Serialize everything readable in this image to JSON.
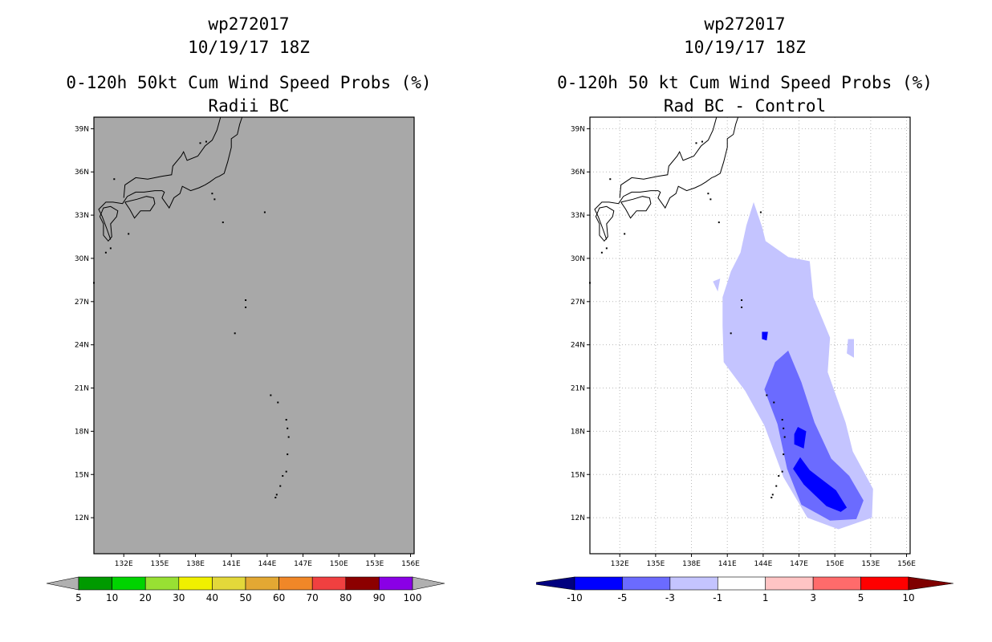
{
  "colors": {
    "land_gray": "#a8a8a8",
    "grid_dot": "#b8b8b8",
    "neg_deep": "#00007f",
    "neg_10_5": "#0000ff",
    "neg_5_3": "#6b6bff",
    "neg_3_1": "#c4c4ff",
    "zero": "#ffffff",
    "pos_1_3": "#ffc4c4",
    "pos_3_5": "#ff6b6b",
    "pos_5_10": "#ff0000",
    "pos_deep": "#7f0000"
  },
  "chart_data": [
    {
      "type": "heatmap",
      "storm": "wp272017",
      "datetime": "10/19/17 18Z",
      "title": "0-120h 50kt Cum Wind Speed Probs (%)",
      "subtitle": "Radii BC",
      "xlabel": "",
      "ylabel": "",
      "xlim": [
        129.5,
        156.3
      ],
      "ylim": [
        9.5,
        39.8
      ],
      "xticks": [
        132,
        135,
        138,
        141,
        144,
        147,
        150,
        153,
        156
      ],
      "xtick_labels": [
        "132E",
        "135E",
        "138E",
        "141E",
        "144E",
        "147E",
        "150E",
        "153E",
        "156E"
      ],
      "yticks": [
        12,
        15,
        18,
        21,
        24,
        27,
        30,
        33,
        36,
        39
      ],
      "ytick_labels": [
        "12N",
        "15N",
        "18N",
        "21N",
        "24N",
        "27N",
        "30N",
        "33N",
        "36N",
        "39N"
      ],
      "grid": false,
      "colorbar": {
        "labels": [
          "5",
          "10",
          "20",
          "30",
          "40",
          "50",
          "60",
          "70",
          "80",
          "90",
          "100"
        ],
        "colors": [
          "#009a00",
          "#00d400",
          "#98e033",
          "#f0f000",
          "#e3d83a",
          "#e3a833",
          "#f08728",
          "#f04040",
          "#8c0000",
          "#8a00e6"
        ],
        "end_color": "#b0b0b0"
      },
      "filled_regions": []
    },
    {
      "type": "heatmap",
      "storm": "wp272017",
      "datetime": "10/19/17 18Z",
      "title": "0-120h 50 kt Cum Wind Speed Probs (%)",
      "subtitle": "Rad BC - Control",
      "xlabel": "",
      "ylabel": "",
      "xlim": [
        129.5,
        156.3
      ],
      "ylim": [
        9.5,
        39.8
      ],
      "xticks": [
        132,
        135,
        138,
        141,
        144,
        147,
        150,
        153,
        156
      ],
      "xtick_labels": [
        "132E",
        "135E",
        "138E",
        "141E",
        "144E",
        "147E",
        "150E",
        "153E",
        "156E"
      ],
      "yticks": [
        12,
        15,
        18,
        21,
        24,
        27,
        30,
        33,
        36,
        39
      ],
      "ytick_labels": [
        "12N",
        "15N",
        "18N",
        "21N",
        "24N",
        "27N",
        "30N",
        "33N",
        "36N",
        "39N"
      ],
      "grid": true,
      "colorbar": {
        "labels": [
          "-10",
          "-5",
          "-3",
          "-1",
          "1",
          "3",
          "5",
          "10"
        ],
        "colors": [
          "#0000ff",
          "#6b6bff",
          "#c4c4ff",
          "#ffffff",
          "#ffc4c4",
          "#ff6b6b",
          "#ff0000"
        ],
        "low_end_color": "#00007f",
        "high_end_color": "#7f0000"
      },
      "filled_regions": [
        {
          "level": "-3 to -1",
          "color": "#c4c4ff",
          "polygon": [
            [
              143.2,
              33.9
            ],
            [
              143.9,
              32.2
            ],
            [
              144.2,
              31.2
            ],
            [
              146.1,
              30.1
            ],
            [
              147.9,
              29.8
            ],
            [
              148.2,
              27.3
            ],
            [
              149.6,
              24.5
            ],
            [
              149.4,
              22.1
            ],
            [
              150.9,
              18.6
            ],
            [
              151.5,
              16.6
            ],
            [
              153.2,
              14.0
            ],
            [
              153.1,
              12.0
            ],
            [
              150.3,
              11.2
            ],
            [
              147.7,
              12.0
            ],
            [
              145.7,
              14.8
            ],
            [
              144.1,
              18.4
            ],
            [
              142.5,
              20.8
            ],
            [
              140.7,
              22.8
            ],
            [
              140.6,
              25.3
            ],
            [
              140.6,
              27.3
            ],
            [
              141.3,
              29.1
            ],
            [
              142.1,
              30.4
            ],
            [
              142.6,
              32.3
            ]
          ]
        },
        {
          "level": "-3 to -1 (small patch)",
          "color": "#c4c4ff",
          "polygon": [
            [
              139.8,
              28.4
            ],
            [
              140.4,
              28.6
            ],
            [
              140.2,
              27.7
            ]
          ]
        },
        {
          "level": "-3 to -1 (small patch)",
          "color": "#c4c4ff",
          "polygon": [
            [
              151.1,
              24.4
            ],
            [
              151.6,
              24.4
            ],
            [
              151.6,
              23.1
            ],
            [
              151.0,
              23.4
            ]
          ]
        },
        {
          "level": "-5 to -3",
          "color": "#6b6bff",
          "polygon": [
            [
              146.1,
              23.6
            ],
            [
              147.2,
              21.4
            ],
            [
              148.3,
              18.6
            ],
            [
              149.7,
              16.1
            ],
            [
              151.2,
              14.9
            ],
            [
              152.4,
              13.2
            ],
            [
              151.8,
              11.9
            ],
            [
              149.6,
              11.8
            ],
            [
              147.2,
              12.9
            ],
            [
              146.0,
              15.4
            ],
            [
              145.2,
              18.5
            ],
            [
              144.1,
              20.9
            ],
            [
              145.0,
              22.8
            ]
          ]
        },
        {
          "level": "-10 to -5",
          "color": "#0000ff",
          "polygon": [
            [
              147.1,
              16.2
            ],
            [
              147.9,
              15.3
            ],
            [
              150.1,
              13.9
            ],
            [
              151.0,
              12.7
            ],
            [
              150.5,
              12.4
            ],
            [
              149.3,
              12.8
            ],
            [
              147.4,
              14.3
            ],
            [
              146.5,
              15.4
            ]
          ]
        },
        {
          "level": "-10 to -5",
          "color": "#0000ff",
          "polygon": [
            [
              146.9,
              18.3
            ],
            [
              147.6,
              18.0
            ],
            [
              147.4,
              16.8
            ],
            [
              146.6,
              17.1
            ],
            [
              146.6,
              17.8
            ]
          ]
        },
        {
          "level": "-10 to -5",
          "color": "#0000ff",
          "polygon": [
            [
              143.9,
              24.9
            ],
            [
              144.4,
              24.9
            ],
            [
              144.3,
              24.3
            ],
            [
              143.9,
              24.4
            ]
          ]
        }
      ]
    }
  ],
  "charts": [
    {
      "storm": "wp272017",
      "datetime": "10/19/17 18Z",
      "title": "0-120h 50kt Cum Wind Speed Probs (%)",
      "subtitle": "Radii BC"
    },
    {
      "storm": "wp272017",
      "datetime": "10/19/17 18Z",
      "title": "0-120h 50 kt Cum Wind Speed Probs (%)",
      "subtitle": "Rad BC - Control"
    }
  ]
}
